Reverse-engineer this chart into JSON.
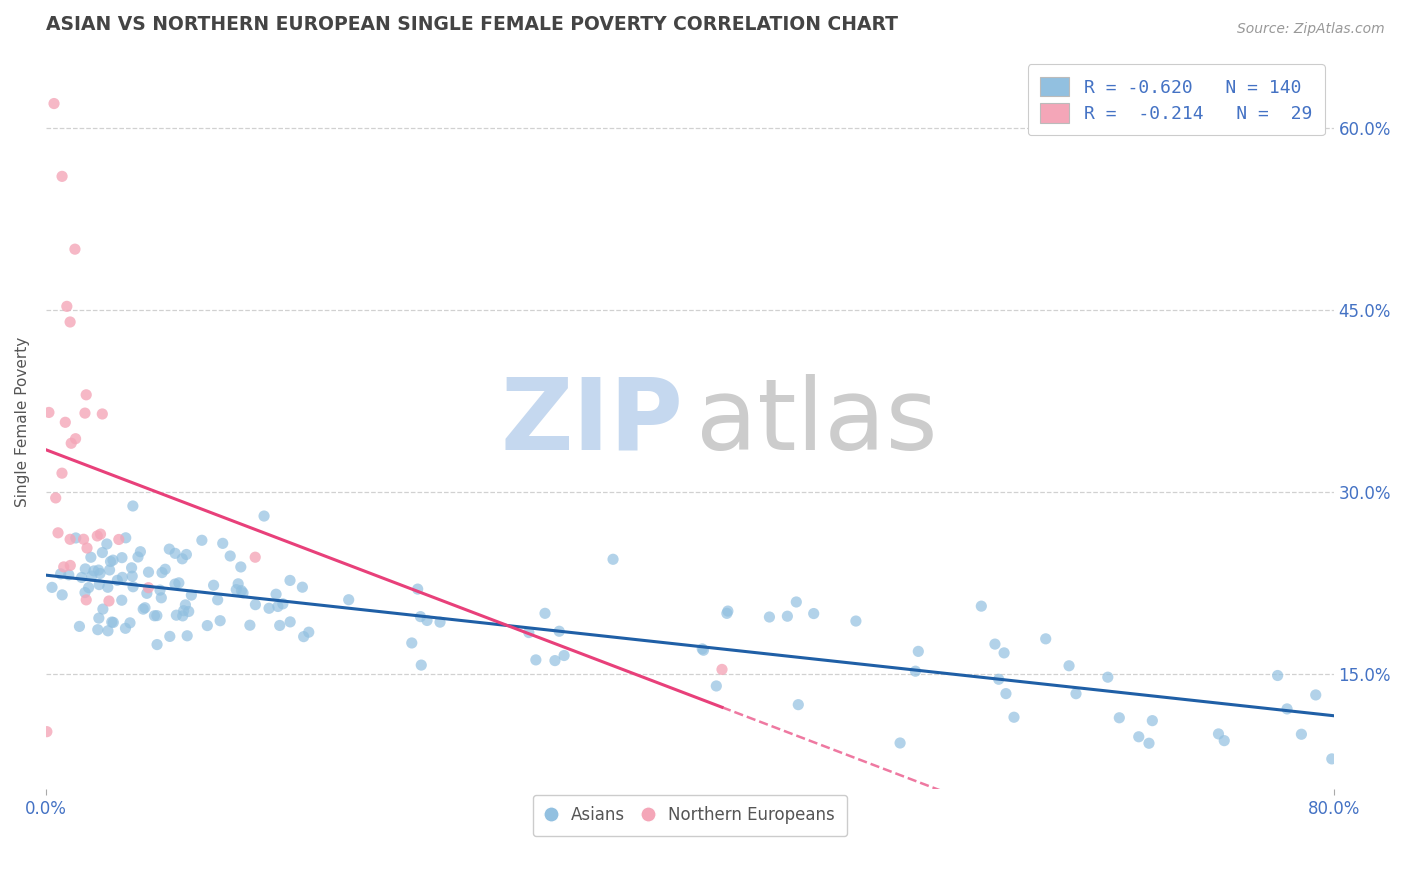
{
  "title": "ASIAN VS NORTHERN EUROPEAN SINGLE FEMALE POVERTY CORRELATION CHART",
  "source": "Source: ZipAtlas.com",
  "ylabel_label": "Single Female Poverty",
  "R_asian": -0.62,
  "N_asian": 140,
  "R_ne": -0.214,
  "N_ne": 29,
  "asian_color": "#92c0e0",
  "ne_color": "#f4a6b8",
  "trend_asian_color": "#1f5fa6",
  "trend_ne_color": "#e8407a",
  "background_color": "#ffffff",
  "grid_color": "#cccccc",
  "watermark_zip_color": "#c5d8ef",
  "watermark_atlas_color": "#cccccc",
  "title_color": "#444444",
  "axis_label_color": "#555555",
  "tick_color": "#4472c4",
  "legend_color": "#4472c4",
  "xlim": [
    0.0,
    0.8
  ],
  "ylim": [
    0.055,
    0.66
  ],
  "yticks": [
    0.15,
    0.3,
    0.45,
    0.6
  ],
  "xticks": [
    0.0,
    0.8
  ]
}
